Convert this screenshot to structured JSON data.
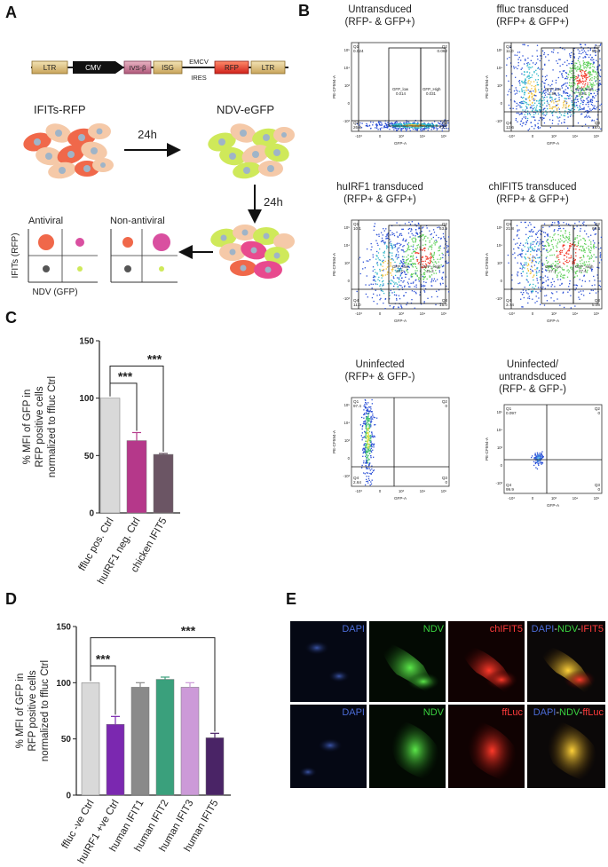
{
  "panels": {
    "A": "A",
    "B": "B",
    "C": "C",
    "D": "D",
    "E": "E"
  },
  "panelA": {
    "construct": [
      "LTR",
      "CMV",
      "IVS-β",
      "ISG",
      "EMCV IRES",
      "RFP",
      "LTR"
    ],
    "emcv_top": "EMCV",
    "emcv_bottom": "IRES",
    "label_ifits": "IFITs-RFP",
    "label_ndv": "NDV-eGFP",
    "time1": "24h",
    "time2": "24h",
    "antiviral": "Antiviral",
    "non_antiviral": "Non-antiviral",
    "y_axis": "IFITs (RFP)",
    "x_axis": "NDV (GFP)"
  },
  "panelB": {
    "y_axis": "PE-CF594-A",
    "x_axis": "GFP-A",
    "plots": [
      {
        "title1": "Untransduced",
        "title2": "(RFP- & GFP+)",
        "q1": "0.024",
        "q2": "0.062",
        "q3": "73.1",
        "q4": "26.8",
        "gfp_low": "0.014",
        "gfp_high": "0.031"
      },
      {
        "title1": "ffluc transduced",
        "title2": "(RFP+ & GFP+)",
        "q1": "11.0",
        "q2": "58.4",
        "q3": "18.0",
        "q4": "12.6",
        "gfp_low": "2.96",
        "gfp_high": "53.3"
      },
      {
        "title1": "huIRF1 transduced",
        "title2": "(RFP+ & GFP+)",
        "q1": "10.1",
        "q2": "63.9",
        "q3": "15.0",
        "q4": "11.0",
        "gfp_low": "19.0",
        "gfp_high": "41.3"
      },
      {
        "title1": "chIFIT5 transduced",
        "title2": "(RFP+ & GFP+)",
        "q1": "21.8",
        "q2": "69.4",
        "q3": "5.08",
        "q4": "3.74",
        "gfp_low": "27.1",
        "gfp_high": "27.4"
      },
      {
        "title1": "Uninfected",
        "title2": "(RFP+ & GFP-)",
        "q1": "97.4",
        "q2": "0",
        "q3": "0",
        "q4": "2.64",
        "gfp_low": "",
        "gfp_high": ""
      },
      {
        "title1": "Uninfected/",
        "title2": "untrandsduced",
        "title3": "(RFP- & GFP-)",
        "q1": "0.097",
        "q2": "0",
        "q3": "0",
        "q4": "99.9",
        "gfp_low": "",
        "gfp_high": ""
      }
    ]
  },
  "chart_data": [
    {
      "type": "bar",
      "ylabel": "% MFI of GFP in RFP positive cells normalized to ffluc Ctrl",
      "ylabel_lines": [
        "% MFI of GFP in",
        "RFP positive cells",
        "normalized to ffluc Ctrl"
      ],
      "categories": [
        "ffluc pos. Ctrl",
        "huIRF1 neg. Ctrl",
        "chicken IFIT5"
      ],
      "values": [
        100,
        63,
        51
      ],
      "errors": [
        0,
        7,
        0.8
      ],
      "colors": [
        "#d9d9d9",
        "#b5388a",
        "#6b5564"
      ],
      "ylim": [
        0,
        150
      ],
      "yticks": [
        "0",
        "50",
        "100",
        "150"
      ],
      "significance": [
        "***",
        "***"
      ]
    },
    {
      "type": "bar",
      "ylabel": "% MFI of GFP in RFP positive cells normalized to ffluc Ctrl",
      "ylabel_lines": [
        "% MFI of GFP in",
        "RFP positive cells",
        "normalized to ffluc Ctrl"
      ],
      "categories": [
        "ffluc -ve Ctrl",
        "huIRF1 +ve Ctrl",
        "human IFIT1",
        "human IFIT2",
        "human IFIT3",
        "human IFIT5"
      ],
      "values": [
        100,
        63,
        96,
        103,
        96,
        51
      ],
      "errors": [
        0,
        7,
        4,
        2,
        4,
        4
      ],
      "colors": [
        "#d9d9d9",
        "#7b28b0",
        "#8a8a8a",
        "#3aa07c",
        "#cc9ad8",
        "#4a2466"
      ],
      "ylim": [
        0,
        150
      ],
      "yticks": [
        "0",
        "50",
        "100",
        "150"
      ],
      "significance": [
        "***",
        "***"
      ]
    }
  ],
  "panelE": {
    "row1": [
      "DAPI",
      "NDV",
      "chIFIT5"
    ],
    "row1_merge": [
      "DAPI",
      "-",
      "NDV",
      "-",
      "IFIT5"
    ],
    "row2": [
      "DAPI",
      "NDV",
      "ffLuc"
    ],
    "row2_merge": [
      "DAPI",
      "-",
      "NDV",
      "-",
      "ffLuc"
    ],
    "colors": {
      "dapi": "#4b6bd6",
      "ndv": "#39d23f",
      "red": "#ff3b3b"
    }
  }
}
